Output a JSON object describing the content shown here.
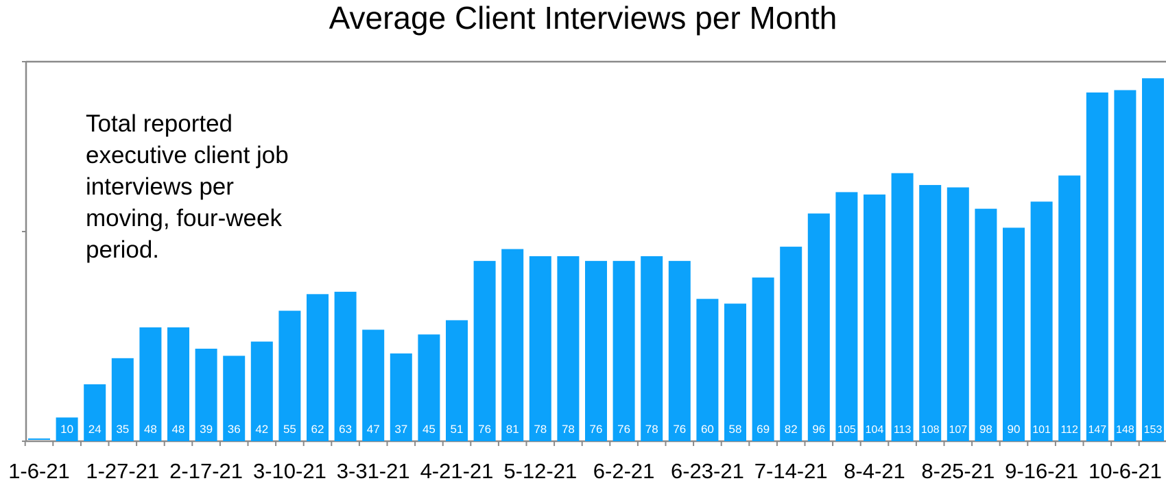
{
  "chart_data": {
    "type": "bar",
    "title": "Average Client Interviews per Month",
    "annotation": "Total reported executive client job interviews per moving, four-week period.",
    "x_tick_labels": [
      "1-6-21",
      "1-27-21",
      "2-17-21",
      "3-10-21",
      "3-31-21",
      "4-21-21",
      "5-12-21",
      "6-2-21",
      "6-23-21",
      "7-14-21",
      "8-4-21",
      "8-25-21",
      "9-16-21",
      "10-6-21"
    ],
    "values": [
      0,
      10,
      24,
      35,
      48,
      48,
      39,
      36,
      42,
      55,
      62,
      63,
      47,
      37,
      45,
      51,
      76,
      81,
      78,
      78,
      76,
      76,
      78,
      76,
      60,
      58,
      69,
      82,
      96,
      105,
      104,
      113,
      108,
      107,
      98,
      90,
      101,
      112,
      147,
      148,
      153
    ],
    "data_labels": [
      "",
      "10",
      "24",
      "35",
      "48",
      "48",
      "39",
      "36",
      "42",
      "55",
      "62",
      "63",
      "47",
      "37",
      "45",
      "51",
      "76",
      "81",
      "78",
      "78",
      "76",
      "76",
      "78",
      "76",
      "60",
      "58",
      "69",
      "82",
      "96",
      "105",
      "104",
      "113",
      "108",
      "107",
      "98",
      "90",
      "101",
      "112",
      "147",
      "148",
      "153"
    ],
    "ylim": [
      0,
      160
    ],
    "grid": false,
    "bar_color": "#0ca2fb",
    "label_color": "#ffffff"
  }
}
